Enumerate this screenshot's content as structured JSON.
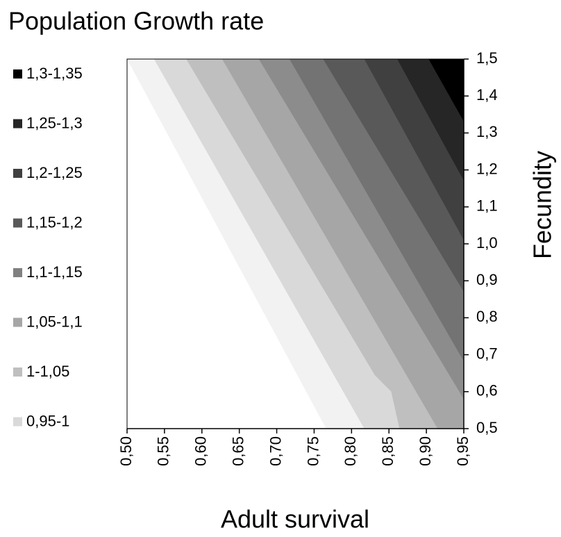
{
  "chart_data": {
    "type": "contour",
    "title": "Population Growth rate",
    "x_label": "Adult survival",
    "y_label": "Fecundity",
    "xlim": [
      0.5,
      0.95
    ],
    "ylim": [
      0.5,
      1.5
    ],
    "xticks": [
      {
        "value": 0.5,
        "label": "0,50"
      },
      {
        "value": 0.55,
        "label": "0,55"
      },
      {
        "value": 0.6,
        "label": "0,60"
      },
      {
        "value": 0.65,
        "label": "0,65"
      },
      {
        "value": 0.7,
        "label": "0,70"
      },
      {
        "value": 0.75,
        "label": "0,75"
      },
      {
        "value": 0.8,
        "label": "0,80"
      },
      {
        "value": 0.85,
        "label": "0,85"
      },
      {
        "value": 0.9,
        "label": "0,90"
      },
      {
        "value": 0.95,
        "label": "0,95"
      }
    ],
    "yticks": [
      {
        "value": 0.5,
        "label": "0,5"
      },
      {
        "value": 0.6,
        "label": "0,6"
      },
      {
        "value": 0.7,
        "label": "0,7"
      },
      {
        "value": 0.8,
        "label": "0,8"
      },
      {
        "value": 0.9,
        "label": "0,9"
      },
      {
        "value": 1.0,
        "label": "1,0"
      },
      {
        "value": 1.1,
        "label": "1,1"
      },
      {
        "value": 1.2,
        "label": "1,2"
      },
      {
        "value": 1.3,
        "label": "1,3"
      },
      {
        "value": 1.4,
        "label": "1,4"
      },
      {
        "value": 1.5,
        "label": "1,5"
      }
    ],
    "legend": [
      {
        "label": "1,3-1,35",
        "color": "#000000"
      },
      {
        "label": "1,25-1,3",
        "color": "#262626"
      },
      {
        "label": "1,2-1,25",
        "color": "#404040"
      },
      {
        "label": "1,15-1,2",
        "color": "#595959"
      },
      {
        "label": "1,1-1,15",
        "color": "#808080"
      },
      {
        "label": "1,05-1,1",
        "color": "#a6a6a6"
      },
      {
        "label": "1-1,05",
        "color": "#bfbfbf"
      },
      {
        "label": "0,95-1",
        "color": "#d9d9d9"
      }
    ],
    "contours": [
      {
        "color": "#f2f2f2",
        "x": [
          0.5,
          0.766
        ],
        "y": [
          1.5,
          0.5
        ]
      },
      {
        "color": "#d9d9d9",
        "x": [
          0.536,
          0.817
        ],
        "y": [
          1.5,
          0.5
        ]
      },
      {
        "color": "#bfbfbf",
        "x": [
          0.579,
          0.831,
          0.853,
          0.864
        ],
        "y": [
          1.5,
          0.645,
          0.6,
          0.5
        ]
      },
      {
        "color": "#a6a6a6",
        "x": [
          0.627,
          0.915
        ],
        "y": [
          1.5,
          0.5
        ]
      },
      {
        "color": "#8c8c8c",
        "x": [
          0.676,
          0.95
        ],
        "y": [
          1.5,
          0.58
        ]
      },
      {
        "color": "#737373",
        "x": [
          0.717,
          0.95
        ],
        "y": [
          1.5,
          0.682
        ]
      },
      {
        "color": "#595959",
        "x": [
          0.762,
          0.95
        ],
        "y": [
          1.5,
          0.87
        ]
      },
      {
        "color": "#404040",
        "x": [
          0.817,
          0.95
        ],
        "y": [
          1.5,
          1.01
        ]
      },
      {
        "color": "#262626",
        "x": [
          0.861,
          0.95
        ],
        "y": [
          1.5,
          1.171
        ]
      },
      {
        "color": "#000000",
        "x": [
          0.903,
          0.95
        ],
        "y": [
          1.5,
          1.331
        ]
      }
    ]
  }
}
